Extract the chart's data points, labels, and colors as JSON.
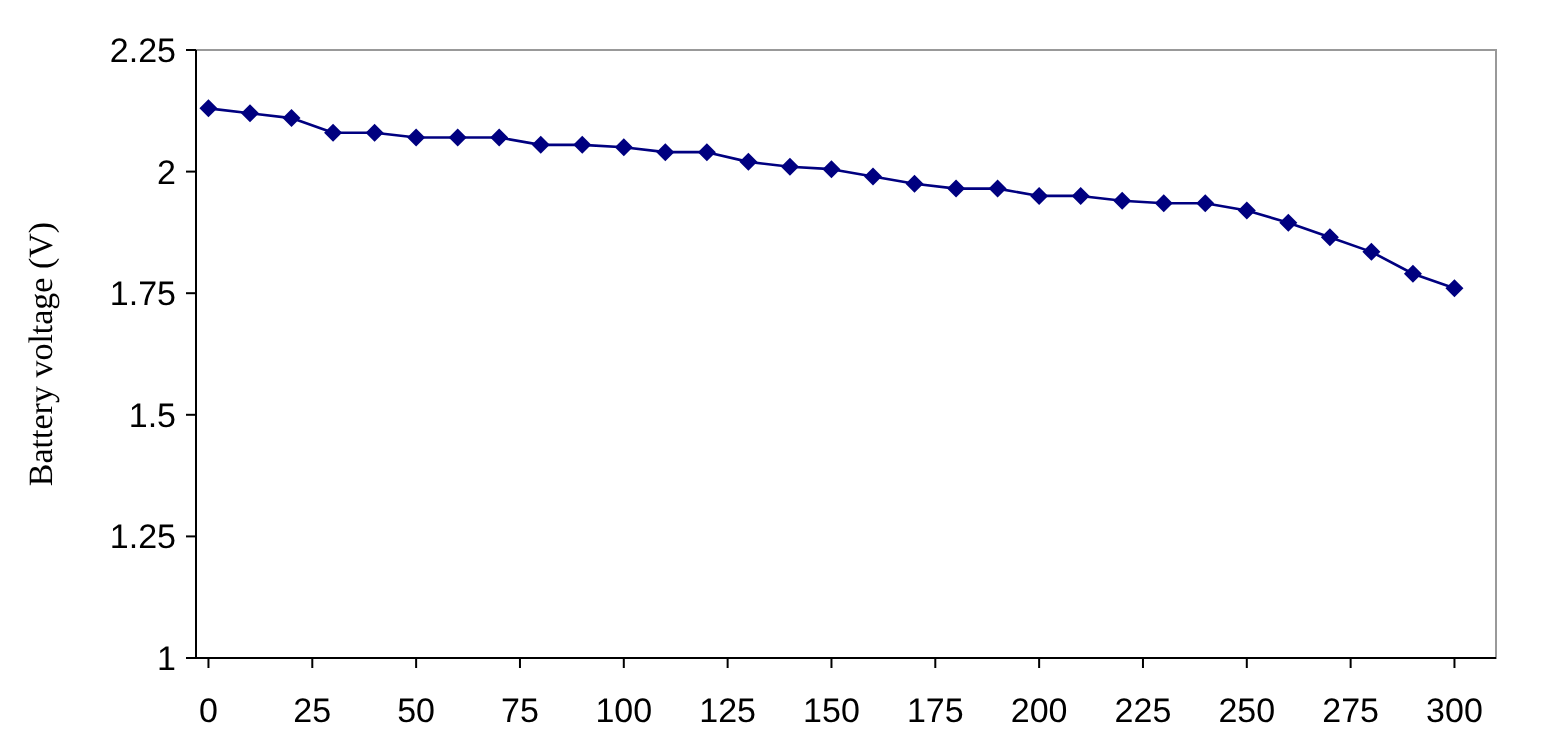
{
  "chart_data": {
    "type": "line",
    "ylabel": "Battery voltage (V)",
    "x": [
      0,
      10,
      20,
      30,
      40,
      50,
      60,
      70,
      80,
      90,
      100,
      110,
      120,
      130,
      140,
      150,
      160,
      170,
      180,
      190,
      200,
      210,
      220,
      230,
      240,
      250,
      260,
      270,
      280,
      290,
      300
    ],
    "series": [
      {
        "color": "#000080",
        "values": [
          2.13,
          2.12,
          2.11,
          2.08,
          2.08,
          2.07,
          2.07,
          2.07,
          2.055,
          2.055,
          2.05,
          2.04,
          2.04,
          2.02,
          2.01,
          2.005,
          1.99,
          1.975,
          1.965,
          1.965,
          1.95,
          1.95,
          1.94,
          1.935,
          1.935,
          1.92,
          1.895,
          1.865,
          1.835,
          1.79,
          1.76
        ]
      }
    ],
    "xlim": [
      -3,
      310
    ],
    "xticks": [
      0,
      25,
      50,
      75,
      100,
      125,
      150,
      175,
      200,
      225,
      250,
      275,
      300
    ],
    "ylim": [
      1,
      2.25
    ],
    "yticks": [
      1,
      1.25,
      1.5,
      1.75,
      2,
      2.25
    ],
    "marker": "diamond",
    "line_style": "solid",
    "grid": false
  }
}
